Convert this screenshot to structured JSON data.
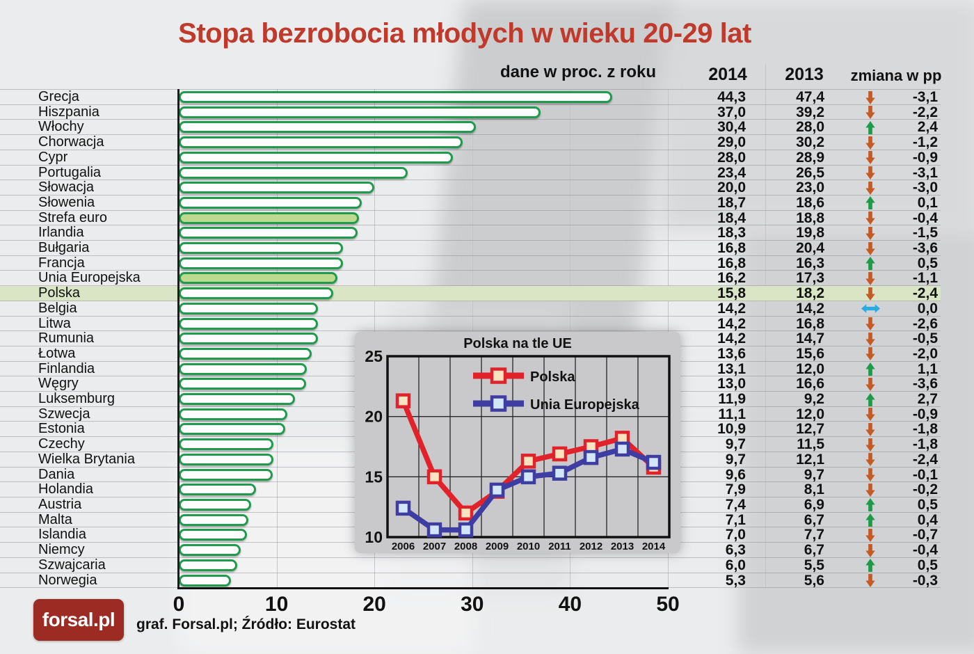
{
  "colors": {
    "title": "#bf3a2b",
    "bar_border": "#209a4c",
    "bar_fill_light_green": "#bcd98f",
    "row_highlight": "#d9e5c4",
    "arrow_down": "#c45a24",
    "arrow_up": "#1d9b48",
    "arrow_flat": "#2aabe2",
    "logo_bg": "#9c2b23"
  },
  "chart_data": [
    {
      "type": "bar",
      "title": "Stopa bezrobocia młodych w wieku 20-29 lat",
      "note": "dane w proc. z roku",
      "change_label": "zmiana w pp",
      "xlim": [
        0,
        50
      ],
      "ticks": [
        0,
        10,
        20,
        30,
        40,
        50
      ],
      "grid": "vertical",
      "categories": [
        "Grecja",
        "Hiszpania",
        "Włochy",
        "Chorwacja",
        "Cypr",
        "Portugalia",
        "Słowacja",
        "Słowenia",
        "Strefa euro",
        "Irlandia",
        "Bułgaria",
        "Francja",
        "Unia Europejska",
        "Polska",
        "Belgia",
        "Litwa",
        "Rumunia",
        "Łotwa",
        "Finlandia",
        "Węgry",
        "Luksemburg",
        "Szwecja",
        "Estonia",
        "Czechy",
        "Wielka Brytania",
        "Dania",
        "Holandia",
        "Austria",
        "Malta",
        "Islandia",
        "Niemcy",
        "Szwajcaria",
        "Norwegia"
      ],
      "series": [
        {
          "name": "2014",
          "values": [
            44.3,
            37.0,
            30.4,
            29.0,
            28.0,
            23.4,
            20.0,
            18.7,
            18.4,
            18.3,
            16.8,
            16.8,
            16.2,
            15.8,
            14.2,
            14.2,
            14.2,
            13.6,
            13.1,
            13.0,
            11.9,
            11.1,
            10.9,
            9.7,
            9.7,
            9.6,
            7.9,
            7.4,
            7.1,
            7.0,
            6.3,
            6.0,
            5.3
          ]
        },
        {
          "name": "2013",
          "values": [
            47.4,
            39.2,
            28.0,
            30.2,
            28.9,
            26.5,
            23.0,
            18.6,
            18.8,
            19.8,
            20.4,
            16.3,
            17.3,
            18.2,
            14.2,
            16.8,
            14.7,
            15.6,
            12.0,
            16.6,
            9.2,
            12.0,
            12.7,
            11.5,
            12.1,
            9.7,
            8.1,
            6.9,
            6.7,
            7.7,
            6.7,
            5.5,
            5.6
          ]
        }
      ],
      "change_pp": [
        -3.1,
        -2.2,
        2.4,
        -1.2,
        -0.9,
        -3.1,
        -3.0,
        0.1,
        -0.4,
        -1.5,
        -3.6,
        0.5,
        -1.1,
        -2.4,
        0.0,
        -2.6,
        -0.5,
        -2.0,
        1.1,
        -3.6,
        2.7,
        -0.9,
        -1.8,
        -1.8,
        -2.4,
        -0.1,
        -0.2,
        0.5,
        0.4,
        -0.7,
        -0.4,
        0.5,
        -0.3
      ],
      "filled_rows": [
        "Strefa euro",
        "Unia Europejska"
      ],
      "highlight_row": "Polska"
    },
    {
      "type": "line",
      "title": "Polska na tle UE",
      "x": [
        2006,
        2007,
        2008,
        2009,
        2010,
        2011,
        2012,
        2013,
        2014
      ],
      "ylim": [
        10,
        25
      ],
      "yticks": [
        10,
        15,
        20,
        25
      ],
      "grid": "on",
      "legend_position": "top-center-inside",
      "series": [
        {
          "name": "Polska",
          "color": "#e1222a",
          "marker_fill": "#f9e4bf",
          "values": [
            21.3,
            15.0,
            12.0,
            13.8,
            16.3,
            16.9,
            17.5,
            18.2,
            15.8
          ]
        },
        {
          "name": "Unia Europejska",
          "color": "#3d3da2",
          "marker_fill": "#d3e6f8",
          "values": [
            12.4,
            10.6,
            10.6,
            13.9,
            15.0,
            15.3,
            16.6,
            17.3,
            16.2
          ]
        }
      ]
    }
  ],
  "footer": {
    "logo_text": "forsal.pl",
    "caption": "graf. Forsal.pl; Źródło: Eurostat"
  }
}
